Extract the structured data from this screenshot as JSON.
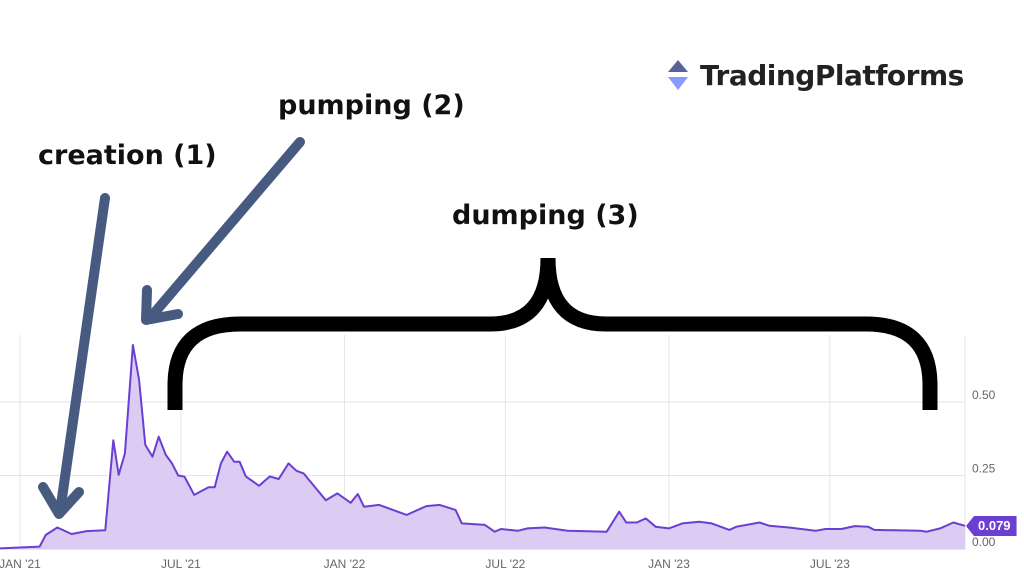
{
  "chart_data": {
    "type": "area",
    "title": "",
    "xlabel": "",
    "ylabel": "",
    "x_ticks": [
      "JAN '21",
      "JUL '21",
      "JAN '22",
      "JUL '22",
      "JAN '23",
      "JUL '23"
    ],
    "x_tick_dates": [
      "2021-01-01",
      "2021-07-01",
      "2022-01-01",
      "2022-07-01",
      "2023-01-01",
      "2023-07-01"
    ],
    "y_ticks": [
      "0.00",
      "0.25",
      "0.50"
    ],
    "y_tick_values": [
      0,
      0.25,
      0.5
    ],
    "ylim": [
      0,
      0.7
    ],
    "y_axis_side": "right",
    "grid": true,
    "line_color": "#6a3fd1",
    "fill_color": "#dccbf2",
    "last_value_label": "0.079",
    "series": [
      {
        "x": [
          "2020-12-09",
          "2021-01-23",
          "2021-01-30",
          "2021-02-12",
          "2021-02-28",
          "2021-03-17",
          "2021-04-07",
          "2021-04-16",
          "2021-04-22",
          "2021-04-29",
          "2021-05-08",
          "2021-05-15",
          "2021-05-22",
          "2021-05-30",
          "2021-06-06",
          "2021-06-14",
          "2021-06-21",
          "2021-06-28",
          "2021-07-05",
          "2021-07-16",
          "2021-08-01",
          "2021-08-08",
          "2021-08-15",
          "2021-08-22",
          "2021-08-30",
          "2021-09-05",
          "2021-09-12",
          "2021-09-27",
          "2021-10-09",
          "2021-10-19",
          "2021-10-30",
          "2021-11-08",
          "2021-11-16",
          "2021-11-30",
          "2021-12-11",
          "2021-12-24",
          "2022-01-08",
          "2022-01-16",
          "2022-01-23",
          "2022-02-09",
          "2022-03-12",
          "2022-04-03",
          "2022-04-18",
          "2022-05-06",
          "2022-05-13",
          "2022-06-08",
          "2022-06-19",
          "2022-06-26",
          "2022-07-15",
          "2022-07-26",
          "2022-08-14",
          "2022-09-09",
          "2022-10-23",
          "2022-11-06",
          "2022-11-14",
          "2022-11-26",
          "2022-12-06",
          "2022-12-17",
          "2023-01-01",
          "2023-01-16",
          "2023-02-04",
          "2023-02-18",
          "2023-03-10",
          "2023-03-18",
          "2023-04-13",
          "2023-04-24",
          "2023-05-16",
          "2023-06-15",
          "2023-06-26",
          "2023-07-14",
          "2023-07-29",
          "2023-08-13",
          "2023-08-20",
          "2023-10-11",
          "2023-10-18",
          "2023-11-02",
          "2023-11-17",
          "2023-11-30"
        ],
        "y": [
          0.002,
          0.008,
          0.048,
          0.073,
          0.051,
          0.061,
          0.064,
          0.37,
          0.252,
          0.325,
          0.694,
          0.575,
          0.354,
          0.314,
          0.382,
          0.32,
          0.291,
          0.25,
          0.246,
          0.184,
          0.21,
          0.21,
          0.291,
          0.331,
          0.297,
          0.297,
          0.247,
          0.215,
          0.247,
          0.238,
          0.291,
          0.266,
          0.257,
          0.206,
          0.166,
          0.189,
          0.157,
          0.187,
          0.144,
          0.15,
          0.116,
          0.146,
          0.15,
          0.133,
          0.087,
          0.082,
          0.059,
          0.068,
          0.062,
          0.07,
          0.073,
          0.062,
          0.059,
          0.127,
          0.09,
          0.09,
          0.104,
          0.076,
          0.07,
          0.087,
          0.093,
          0.087,
          0.065,
          0.076,
          0.09,
          0.079,
          0.073,
          0.062,
          0.068,
          0.068,
          0.078,
          0.076,
          0.065,
          0.062,
          0.059,
          0.07,
          0.09,
          0.079
        ]
      }
    ]
  },
  "annotations": {
    "creation": "creation (1)",
    "pumping": "pumping (2)",
    "dumping": "dumping (3)",
    "arrow_color": "#475a80"
  },
  "logo": {
    "text": "TradingPlatforms",
    "icon": "up-down-triangles-icon",
    "colors": [
      "#5a6399",
      "#8899ff"
    ]
  }
}
